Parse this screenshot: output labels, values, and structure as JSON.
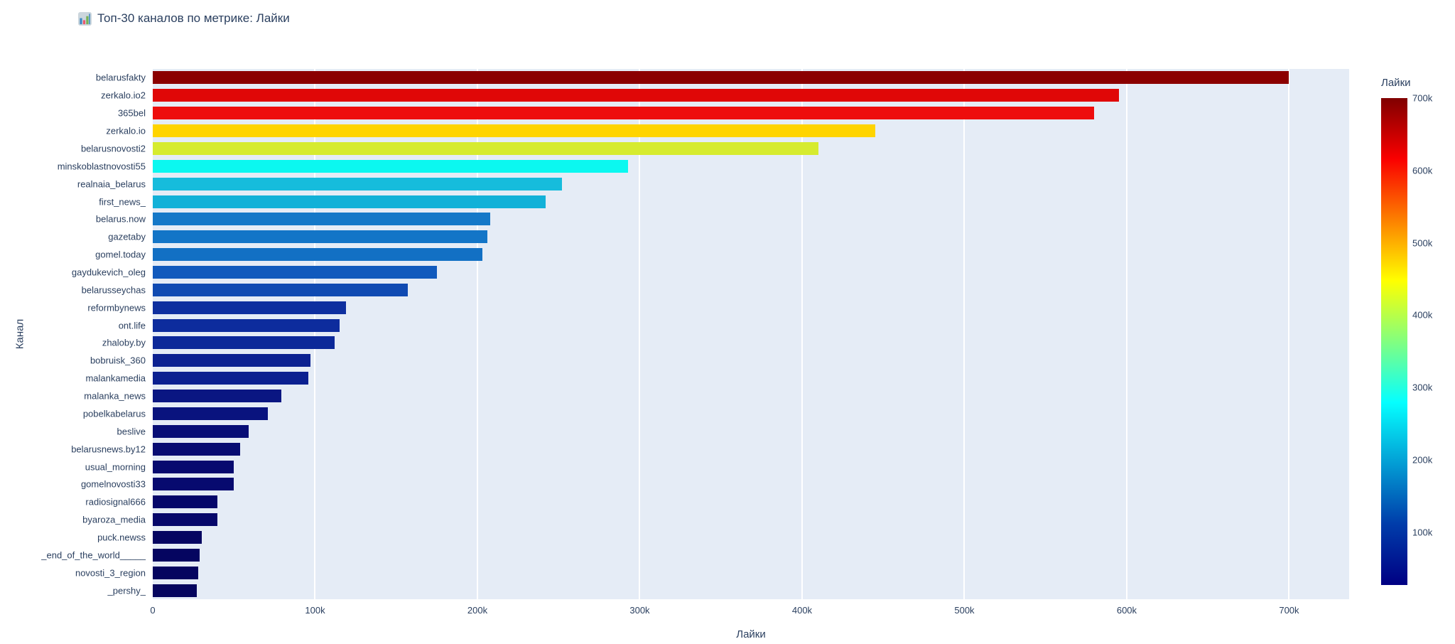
{
  "header": {
    "icon": "bar-chart",
    "title": "Топ-30 каналов по метрике: Лайки"
  },
  "chart_data": {
    "type": "bar",
    "orientation": "horizontal",
    "title": "Топ-30 каналов по метрике: Лайки",
    "xlabel": "Лайки",
    "ylabel": "Канал",
    "xlim": [
      0,
      737000
    ],
    "grid": true,
    "plot_bg": "#e5ecf6",
    "grid_color": "#ffffff",
    "text_color": "#2a3f5f",
    "x_ticks": [
      {
        "label": "0",
        "value": 0
      },
      {
        "label": "100k",
        "value": 100000
      },
      {
        "label": "200k",
        "value": 200000
      },
      {
        "label": "300k",
        "value": 300000
      },
      {
        "label": "400k",
        "value": 400000
      },
      {
        "label": "500k",
        "value": 500000
      },
      {
        "label": "600k",
        "value": 600000
      },
      {
        "label": "700k",
        "value": 700000
      }
    ],
    "categories": [
      "belarusfakty",
      "zerkalo.io2",
      "365bel",
      "zerkalo.io",
      "belarusnovosti2",
      "minskoblastnovosti55",
      "realnaia_belarus",
      "first_news_",
      "belarus.now",
      "gazetaby",
      "gomel.today",
      "gaydukevich_oleg",
      "belarusseychas",
      "reformbynews",
      "ont.life",
      "zhaloby.by",
      "bobruisk_360",
      "malankamedia",
      "malanka_news",
      "pobelkabelarus",
      "beslive",
      "belarusnews.by12",
      "usual_morning",
      "gomelnovosti33",
      "radiosignal666",
      "byaroza_media",
      "puck.newss",
      "_end_of_the_world_____",
      "novosti_3_region",
      "_pershy_"
    ],
    "values": [
      700000,
      595000,
      580000,
      445000,
      410000,
      293000,
      252000,
      242000,
      208000,
      206000,
      203000,
      175000,
      157000,
      119000,
      115000,
      112000,
      97000,
      96000,
      79000,
      71000,
      59000,
      54000,
      50000,
      50000,
      40000,
      40000,
      30000,
      29000,
      28000,
      27000
    ],
    "bar_colors": [
      "#8b0000",
      "#e00707",
      "#ee0d0d",
      "#ffd400",
      "#d6eb2f",
      "#0bf8f0",
      "#16bcdc",
      "#12b1d8",
      "#1478c8",
      "#1375c7",
      "#1270c4",
      "#115abd",
      "#0f4ab2",
      "#0e2f9f",
      "#0d2c9d",
      "#0c2999",
      "#0b2191",
      "#0b2090",
      "#0a1682",
      "#09137e",
      "#080e76",
      "#080c72",
      "#070a6f",
      "#070a6f",
      "#06076a",
      "#06076a",
      "#050561",
      "#050560",
      "#05055f",
      "#05055e"
    ],
    "colorbar": {
      "title": "Лайки",
      "cmin": 27000,
      "cmax": 700000,
      "colormap": "jet",
      "gradient": [
        {
          "color": "#000083",
          "pos": 0
        },
        {
          "color": "#003caa",
          "pos": 12.5
        },
        {
          "color": "#05ffff",
          "pos": 37.5
        },
        {
          "color": "#ffff00",
          "pos": 62.5
        },
        {
          "color": "#fa0000",
          "pos": 87.5
        },
        {
          "color": "#800000",
          "pos": 100
        }
      ],
      "ticks": [
        {
          "label": "700k",
          "value": 700000
        },
        {
          "label": "600k",
          "value": 600000
        },
        {
          "label": "500k",
          "value": 500000
        },
        {
          "label": "400k",
          "value": 400000
        },
        {
          "label": "300k",
          "value": 300000
        },
        {
          "label": "200k",
          "value": 200000
        },
        {
          "label": "100k",
          "value": 100000
        }
      ]
    }
  }
}
